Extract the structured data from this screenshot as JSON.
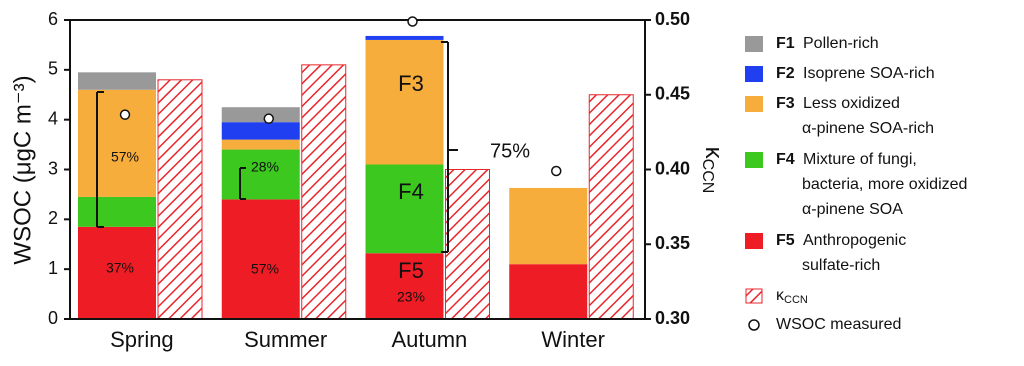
{
  "chart_data": {
    "type": "bar",
    "stacked": true,
    "categories": [
      "Spring",
      "Summer",
      "Autumn",
      "Winter"
    ],
    "ylabel": "WSOC (μgC m⁻³)",
    "y2label": {
      "symbol": "κ",
      "subscript": "CCN"
    },
    "ylim": [
      0,
      6
    ],
    "yticks": [
      0,
      1,
      2,
      3,
      4,
      5,
      6
    ],
    "y2lim": [
      0.3,
      0.5
    ],
    "y2ticks": [
      {
        "value": 0.3,
        "label": "0.30"
      },
      {
        "value": 0.35,
        "label": "0.35"
      },
      {
        "value": 0.4,
        "label": "0.40"
      },
      {
        "value": 0.45,
        "label": "0.45"
      },
      {
        "value": 0.5,
        "label": "0.50"
      }
    ],
    "series": [
      {
        "name": "F5",
        "description": [
          "Anthropogenic",
          "sulfate-rich"
        ],
        "color": "#ee1c25",
        "values": [
          1.85,
          2.4,
          1.32,
          1.1
        ]
      },
      {
        "name": "F4",
        "description": [
          "Mixture of fungi,",
          "bacteria, more oxidized",
          "α-pinene SOA"
        ],
        "color": "#3cc81e",
        "values": [
          0.6,
          1.0,
          1.78,
          0
        ]
      },
      {
        "name": "F3",
        "description": [
          "Less oxidized",
          "α-pinene SOA-rich"
        ],
        "color": "#f7ad3c",
        "values": [
          2.15,
          0.2,
          2.5,
          1.53
        ]
      },
      {
        "name": "F2",
        "description": [
          "Isoprene SOA-rich"
        ],
        "color": "#1f3ff0",
        "values": [
          0,
          0.35,
          0.08,
          0
        ]
      },
      {
        "name": "F1",
        "description": [
          "Pollen-rich"
        ],
        "color": "#999999",
        "values": [
          0.35,
          0.3,
          0,
          0
        ]
      }
    ],
    "kappa": {
      "symbol": "κ",
      "subscript": "CCN",
      "axis": "y2",
      "color": "#e8262b",
      "values": [
        0.46,
        0.47,
        0.4,
        0.45
      ]
    },
    "measured": {
      "name": "WSOC measured",
      "values": [
        4.1,
        4.02,
        5.97,
        2.97
      ]
    },
    "annotations": [
      "57%",
      "37%",
      "28%",
      "57%",
      "F3",
      "F4",
      "F5",
      "23%",
      "75%"
    ]
  }
}
